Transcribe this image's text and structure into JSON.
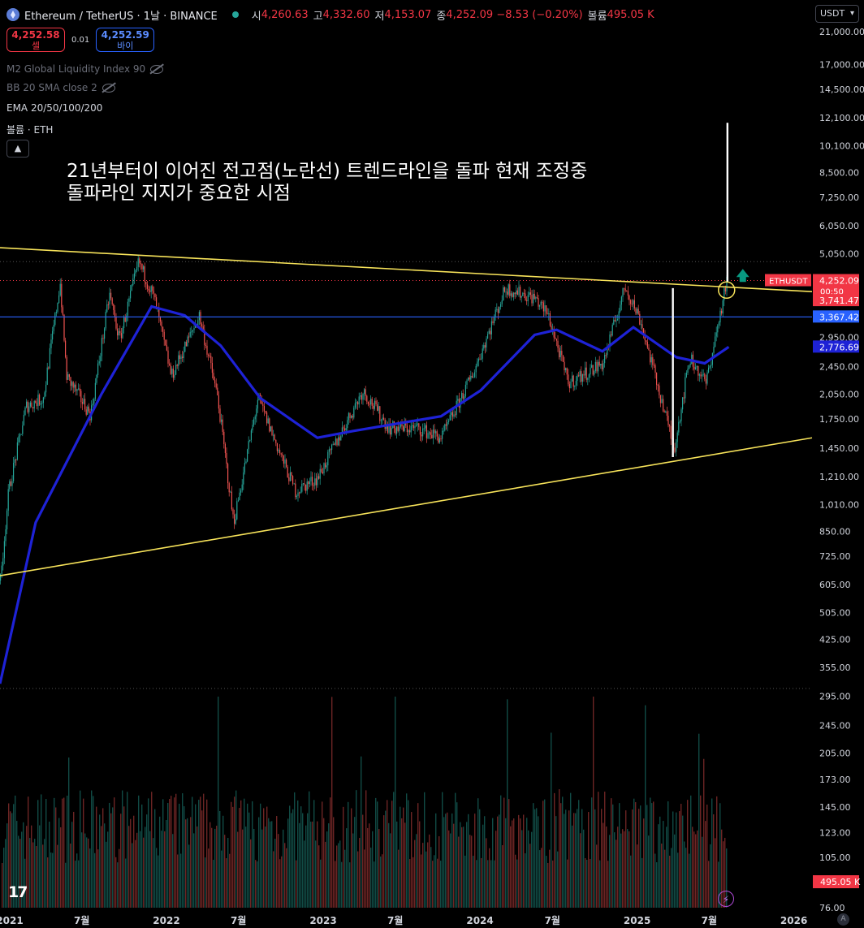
{
  "header": {
    "title": "Ethereum / TetherUS · 1날 · BINANCE",
    "ohlc": [
      {
        "k": "시",
        "v": "4,260.63"
      },
      {
        "k": "고",
        "v": "4,332.60"
      },
      {
        "k": "저",
        "v": "4,153.07"
      },
      {
        "k": "종",
        "v": "4,252.09 −8.53 (−0.20%)"
      },
      {
        "k": "볼륨",
        "v": "495.05 K"
      }
    ]
  },
  "trade": {
    "sell_price": "4,252.58",
    "sell_label": "셀",
    "spread": "0.01",
    "buy_price": "4,252.59",
    "buy_label": "바이"
  },
  "indicators": {
    "m2": "M2 Global Liquidity Index 90",
    "bb": "BB 20 SMA close 2",
    "ema": "EMA 20/50/100/200",
    "vol": "볼륨 · ETH"
  },
  "collapse_icon": "chevron-up-icon",
  "annotation": {
    "line1": "21년부터이 이어진 전고점(노란선) 트렌드라인을 돌파 현재 조정중",
    "line2": "돌파라인 지지가 중요한 시점"
  },
  "currency_select": "USDT",
  "colors": {
    "up": "#26a69a",
    "down": "#ef5350",
    "ema": "#1e22d6",
    "trendline": "#f7e35a",
    "hline": "#2962ff",
    "arrow": "#089981",
    "price_badge": "#f23645"
  },
  "chart_data": {
    "type": "candlestick",
    "symbol": "ETHUSDT",
    "scale": "log",
    "ylim": [
      70,
      23500
    ],
    "x_tick_labels": [
      "2021",
      "7월",
      "2022",
      "7월",
      "2023",
      "7월",
      "2024",
      "7월",
      "2025",
      "7월",
      "2026"
    ],
    "price_ticks": [
      "21,000.00",
      "17,000.00",
      "14,500.00",
      "12,100.00",
      "10,100.00",
      "8,500.00",
      "7,250.00",
      "6,050.00",
      "5,050.00",
      "2,950.00",
      "2,450.00",
      "2,050.00",
      "1,750.00",
      "1,450.00",
      "1,210.00",
      "1,010.00",
      "850.00",
      "725.00",
      "605.00",
      "505.00",
      "425.00",
      "355.00",
      "295.00",
      "245.00",
      "205.00",
      "173.00",
      "145.00",
      "123.00",
      "105.00",
      "76.00"
    ],
    "close_path": [
      [
        "2020-12-22",
        620
      ],
      [
        "2021-01-10",
        1100
      ],
      [
        "2021-02-20",
        1900
      ],
      [
        "2021-04-01",
        2000
      ],
      [
        "2021-05-10",
        4200
      ],
      [
        "2021-05-25",
        2300
      ],
      [
        "2021-07-20",
        1800
      ],
      [
        "2021-09-02",
        3900
      ],
      [
        "2021-09-25",
        2900
      ],
      [
        "2021-11-09",
        4800
      ],
      [
        "2021-12-15",
        3800
      ],
      [
        "2022-01-24",
        2300
      ],
      [
        "2022-03-30",
        3400
      ],
      [
        "2022-05-12",
        2000
      ],
      [
        "2022-06-18",
        900
      ],
      [
        "2022-08-14",
        2000
      ],
      [
        "2022-10-15",
        1300
      ],
      [
        "2022-11-09",
        1100
      ],
      [
        "2022-12-31",
        1200
      ],
      [
        "2023-04-15",
        2100
      ],
      [
        "2023-06-15",
        1650
      ],
      [
        "2023-08-20",
        1650
      ],
      [
        "2023-10-15",
        1550
      ],
      [
        "2023-12-28",
        2350
      ],
      [
        "2024-03-12",
        4050
      ],
      [
        "2024-05-20",
        3800
      ],
      [
        "2024-06-20",
        3400
      ],
      [
        "2024-08-05",
        2200
      ],
      [
        "2024-10-25",
        2500
      ],
      [
        "2024-12-16",
        4100
      ],
      [
        "2025-01-20",
        3300
      ],
      [
        "2025-04-09",
        1450
      ],
      [
        "2025-05-15",
        2600
      ],
      [
        "2025-06-22",
        2200
      ],
      [
        "2025-08-10",
        4250
      ]
    ],
    "ema_path": [
      [
        "2020-12-22",
        320
      ],
      [
        "2021-03-15",
        900
      ],
      [
        "2021-08-15",
        2050
      ],
      [
        "2021-12-10",
        3600
      ],
      [
        "2022-02-25",
        3400
      ],
      [
        "2022-05-20",
        2800
      ],
      [
        "2022-08-20",
        2000
      ],
      [
        "2022-12-31",
        1550
      ],
      [
        "2023-03-25",
        1620
      ],
      [
        "2023-10-15",
        1780
      ],
      [
        "2024-01-15",
        2100
      ],
      [
        "2024-05-20",
        3000
      ],
      [
        "2024-07-10",
        3100
      ],
      [
        "2024-10-25",
        2700
      ],
      [
        "2025-01-05",
        3150
      ],
      [
        "2025-04-15",
        2600
      ],
      [
        "2025-06-20",
        2500
      ],
      [
        "2025-08-15",
        2777
      ]
    ],
    "trendlines": [
      {
        "name": "전고점",
        "from": [
          "2020-12-22",
          5250
        ],
        "to": [
          "2026-02-25",
          3960
        ]
      },
      {
        "name": "support",
        "from": [
          "2020-12-22",
          640
        ],
        "to": [
          "2026-02-25",
          1550
        ]
      }
    ],
    "horizontal_line": 3367.42,
    "target_line": {
      "from": [
        "2025-08-12",
        4200
      ],
      "to": [
        "2025-08-12",
        11700
      ]
    },
    "retest_line": {
      "from": [
        "2025-04-07",
        1370
      ],
      "to": [
        "2025-04-07",
        4050
      ]
    },
    "price_labels": [
      {
        "name": "ETHUSDT",
        "price": 4252.09,
        "text": "4,252.09",
        "sub": "00:50",
        "color": "#f23645"
      },
      {
        "price": 3741.47,
        "text": "3,741.47",
        "color": "#f23645"
      },
      {
        "price": 3367.42,
        "text": "3,367.42",
        "color": "#2962ff"
      },
      {
        "price": 2776.69,
        "text": "2,776.69",
        "color": "#1e22d6"
      }
    ],
    "volume": {
      "last": "495.05 K",
      "label_color": "#f23645"
    }
  }
}
